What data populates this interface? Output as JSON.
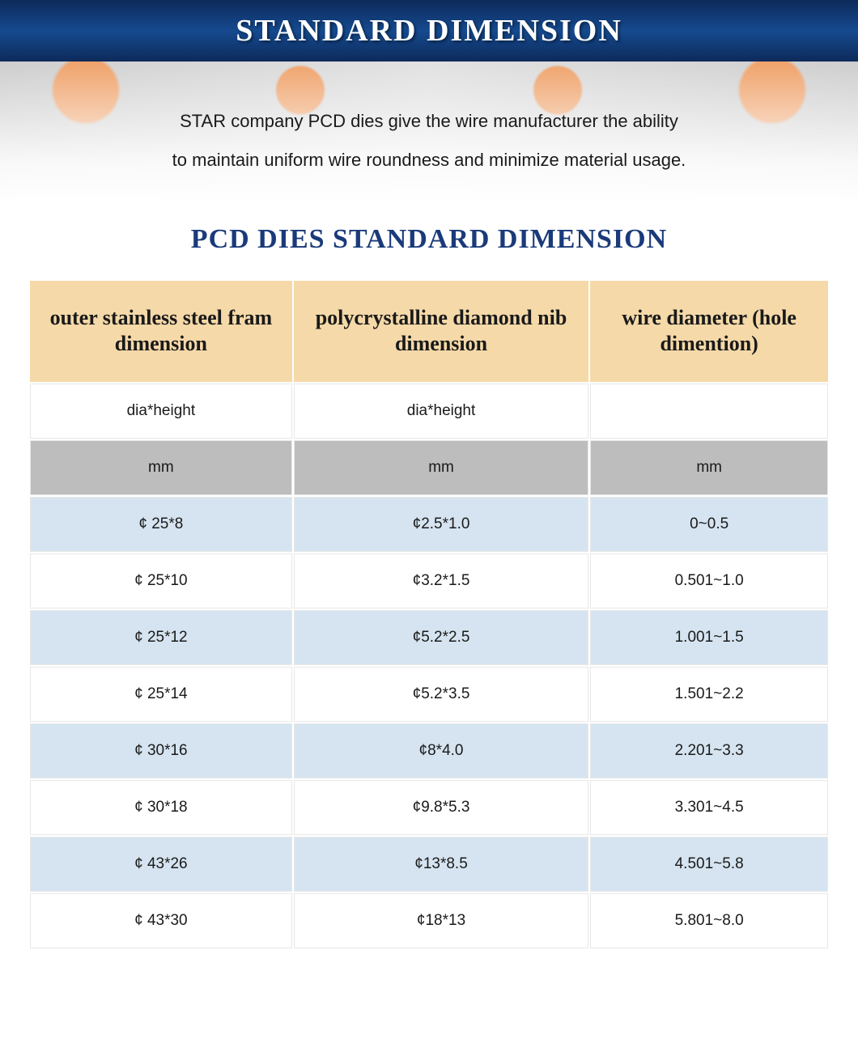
{
  "banner": {
    "title": "STANDARD DIMENSION"
  },
  "hero": {
    "line1": "STAR company PCD dies give the wire manufacturer the ability",
    "line2": "to maintain uniform wire roundness and minimize material usage."
  },
  "subtitle": "PCD DIES STANDARD DIMENSION",
  "table": {
    "headers": {
      "col1": "outer stainless steel fram dimension",
      "col2": "polycrystalline diamond nib dimension",
      "col3": "wire diameter (hole dimention)"
    },
    "subheaders": {
      "col1": "dia*height",
      "col2": "dia*height",
      "col3": ""
    },
    "units": {
      "col1": "mm",
      "col2": "mm",
      "col3": "mm"
    },
    "rows": [
      {
        "c1": "¢ 25*8",
        "c2": "¢2.5*1.0",
        "c3": "0~0.5"
      },
      {
        "c1": "¢ 25*10",
        "c2": "¢3.2*1.5",
        "c3": "0.501~1.0"
      },
      {
        "c1": "¢ 25*12",
        "c2": "¢5.2*2.5",
        "c3": "1.001~1.5"
      },
      {
        "c1": "¢ 25*14",
        "c2": "¢5.2*3.5",
        "c3": "1.501~2.2"
      },
      {
        "c1": "¢ 30*16",
        "c2": "¢8*4.0",
        "c3": "2.201~3.3"
      },
      {
        "c1": "¢ 30*18",
        "c2": "¢9.8*5.3",
        "c3": "3.301~4.5"
      },
      {
        "c1": "¢ 43*26",
        "c2": "¢13*8.5",
        "c3": "4.501~5.8"
      },
      {
        "c1": "¢ 43*30",
        "c2": "¢18*13",
        "c3": "5.801~8.0"
      }
    ],
    "row_band_colors": {
      "blue": "#d5e4f0",
      "white": "#ffffff",
      "unit": "#bdbdbd",
      "header": "#f5d9a8"
    }
  },
  "colors": {
    "banner_bg_dark": "#0d2a5a",
    "banner_bg_mid": "#154a8f",
    "banner_text": "#ffffff",
    "subtitle_text": "#1a3a7a",
    "body_text": "#1a1a1a"
  }
}
